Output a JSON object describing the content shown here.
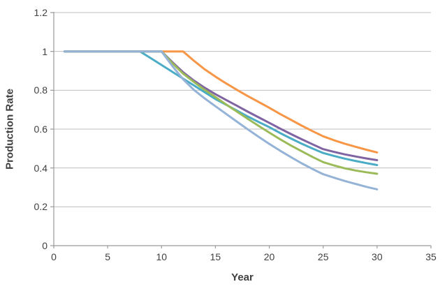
{
  "style": {
    "background_color": "#FFFFFF",
    "gridline_color": "#BDBDBD",
    "axis_color": "#9A9A9A",
    "tick_color": "#9A9A9A",
    "text_color": "#404040"
  },
  "chart_data": {
    "type": "line",
    "title": "",
    "xlabel": "Year",
    "ylabel": "Production Rate",
    "xlim": [
      0,
      35
    ],
    "ylim": [
      0,
      1.2
    ],
    "x_ticks": [
      0,
      5,
      10,
      15,
      20,
      25,
      30,
      35
    ],
    "x_tick_labels": [
      "0",
      "5",
      "10",
      "15",
      "20",
      "25",
      "30",
      "35"
    ],
    "y_ticks": [
      0,
      0.2,
      0.4,
      0.6,
      0.8,
      1,
      1.2
    ],
    "y_tick_labels": [
      "0",
      "0.2",
      "0.4",
      "0.6",
      "0.8",
      "1",
      "1.2"
    ],
    "grid": "horizontal",
    "legend": "none",
    "x": [
      1,
      2,
      3,
      4,
      5,
      6,
      7,
      8,
      9,
      10,
      11,
      12,
      13,
      14,
      15,
      16,
      17,
      18,
      19,
      20,
      21,
      22,
      23,
      24,
      25,
      26,
      27,
      28,
      29,
      30
    ],
    "series": [
      {
        "name": "teal-curve",
        "color": "#4BACC6",
        "decline_start_year": 8,
        "values": [
          1,
          1,
          1,
          1,
          1,
          1,
          1,
          1,
          0.965,
          0.93,
          0.895,
          0.86,
          0.825,
          0.79,
          0.755,
          0.725,
          0.695,
          0.665,
          0.637,
          0.61,
          0.58,
          0.552,
          0.525,
          0.5,
          0.477,
          0.462,
          0.448,
          0.436,
          0.425,
          0.415
        ]
      },
      {
        "name": "orange-curve",
        "color": "#F79646",
        "decline_start_year": 12,
        "values": [
          1,
          1,
          1,
          1,
          1,
          1,
          1,
          1,
          1,
          1,
          1,
          1,
          0.952,
          0.908,
          0.87,
          0.835,
          0.802,
          0.77,
          0.74,
          0.71,
          0.678,
          0.648,
          0.618,
          0.59,
          0.563,
          0.543,
          0.525,
          0.509,
          0.494,
          0.48
        ]
      },
      {
        "name": "purple-curve",
        "color": "#8064A2",
        "decline_start_year": 10,
        "values": [
          1,
          1,
          1,
          1,
          1,
          1,
          1,
          1,
          1,
          1,
          0.945,
          0.893,
          0.85,
          0.813,
          0.78,
          0.75,
          0.72,
          0.69,
          0.661,
          0.632,
          0.603,
          0.575,
          0.548,
          0.522,
          0.497,
          0.483,
          0.47,
          0.459,
          0.449,
          0.44
        ]
      },
      {
        "name": "green-curve",
        "color": "#9BBB59",
        "decline_start_year": 10,
        "values": [
          1,
          1,
          1,
          1,
          1,
          1,
          1,
          1,
          1,
          1,
          0.94,
          0.886,
          0.843,
          0.802,
          0.765,
          0.727,
          0.69,
          0.653,
          0.617,
          0.582,
          0.548,
          0.516,
          0.486,
          0.457,
          0.43,
          0.413,
          0.398,
          0.387,
          0.378,
          0.37
        ]
      },
      {
        "name": "lightblue-curve",
        "color": "#95B3D7",
        "decline_start_year": 10,
        "values": [
          1,
          1,
          1,
          1,
          1,
          1,
          1,
          1,
          1,
          1,
          0.925,
          0.857,
          0.802,
          0.758,
          0.718,
          0.678,
          0.638,
          0.599,
          0.561,
          0.524,
          0.489,
          0.456,
          0.424,
          0.395,
          0.368,
          0.35,
          0.333,
          0.318,
          0.303,
          0.29
        ]
      }
    ]
  }
}
